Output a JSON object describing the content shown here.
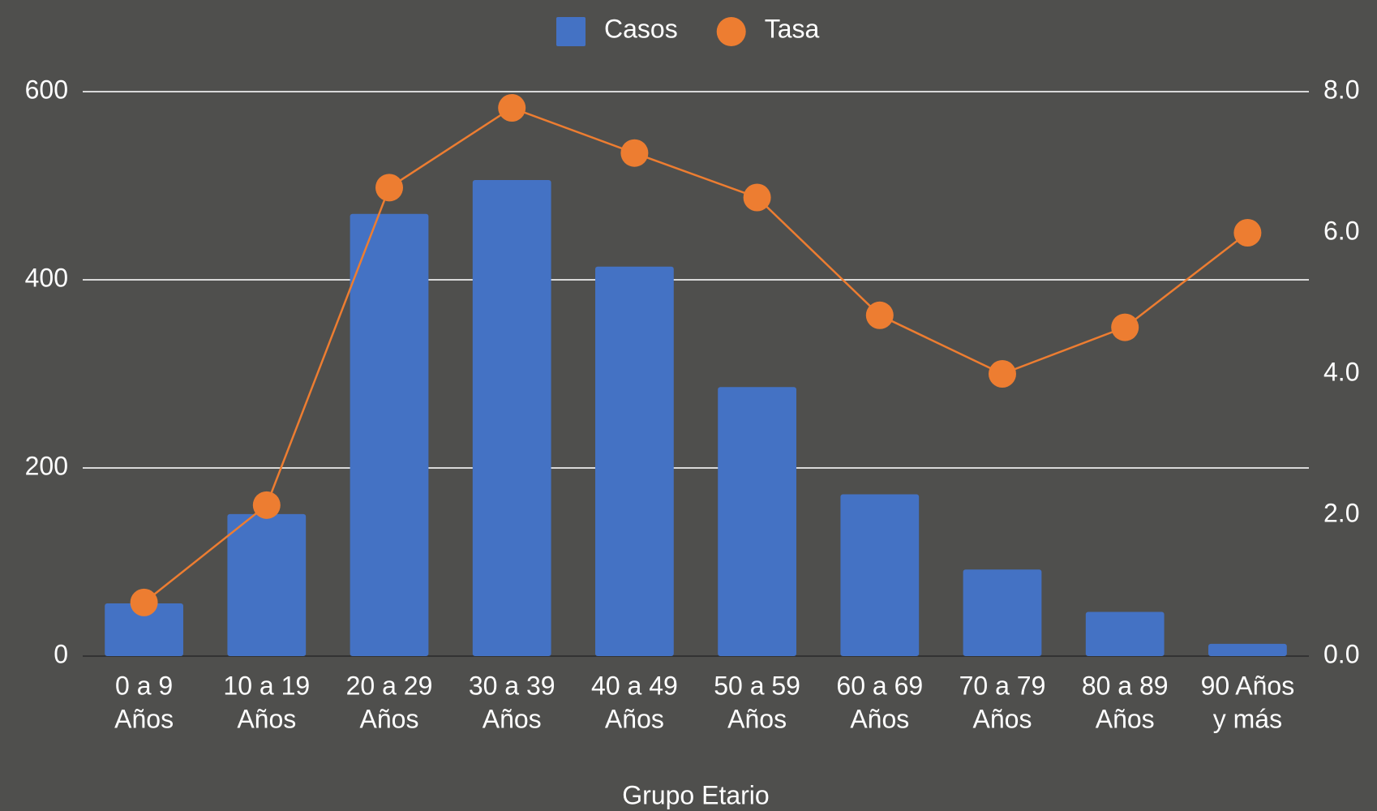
{
  "chart_data": {
    "type": "bar_line",
    "x_label": "Grupo Etario",
    "categories": [
      [
        "0 a 9",
        "Años"
      ],
      [
        "10 a 19",
        "Años"
      ],
      [
        "20 a 29",
        "Años"
      ],
      [
        "30 a 39",
        "Años"
      ],
      [
        "40 a 49",
        "Años"
      ],
      [
        "50 a 59",
        "Años"
      ],
      [
        "60 a 69",
        "Años"
      ],
      [
        "70 a 79",
        "Años"
      ],
      [
        "80 a 89",
        "Años"
      ],
      [
        "90 Años",
        "y más"
      ]
    ],
    "series": [
      {
        "name": "Casos",
        "type": "bar",
        "color": "#4472c4",
        "values": [
          56,
          151,
          470,
          506,
          414,
          286,
          172,
          92,
          47,
          13
        ]
      },
      {
        "name": "Tasa",
        "type": "line",
        "axis": "y2",
        "color": "#ed7d31",
        "values": [
          0.76,
          2.14,
          6.64,
          7.77,
          7.13,
          6.5,
          4.83,
          4.0,
          4.66,
          6.0
        ]
      }
    ],
    "ylim": [
      0,
      600
    ],
    "yticks": [
      0,
      200,
      400,
      600
    ],
    "y2lim": [
      0,
      8
    ],
    "y2ticks": [
      {
        "value": 0,
        "label": "0.0"
      },
      {
        "value": 2,
        "label": "2.0"
      },
      {
        "value": 4,
        "label": "4.0"
      },
      {
        "value": 6,
        "label": "6.0"
      },
      {
        "value": 8,
        "label": "8.0"
      }
    ],
    "grid": true,
    "legend": "top"
  }
}
